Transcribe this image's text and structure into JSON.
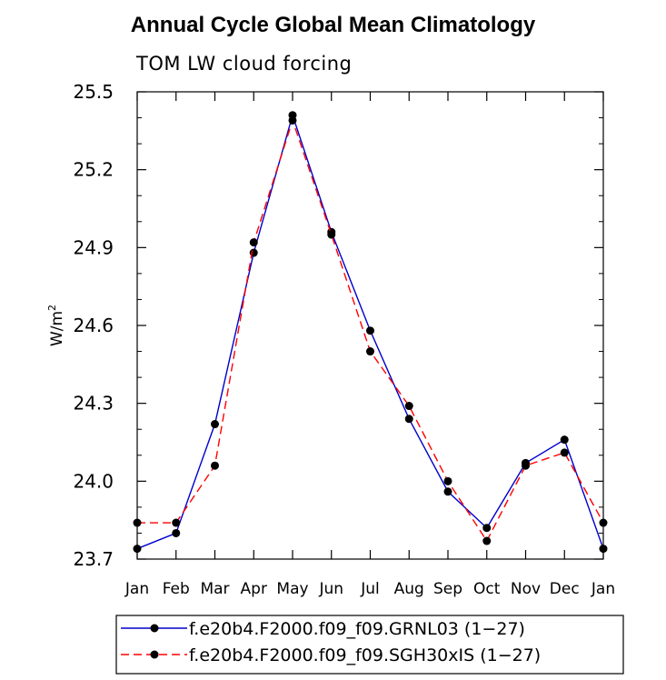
{
  "chart_data": {
    "type": "line",
    "title": "Annual Cycle Global Mean Climatology",
    "subtitle": "TOM LW cloud forcing",
    "xlabel": "",
    "ylabel_base": "W/m",
    "ylabel_sup": "2",
    "categories": [
      "Jan",
      "Feb",
      "Mar",
      "Apr",
      "May",
      "Jun",
      "Jul",
      "Aug",
      "Sep",
      "Oct",
      "Nov",
      "Dec",
      "Jan"
    ],
    "ylim": [
      23.7,
      25.5
    ],
    "yticks": [
      "23.7",
      "24.0",
      "24.3",
      "24.6",
      "24.9",
      "25.2",
      "25.5"
    ],
    "series": [
      {
        "name": "f.e20b4.F2000.f09_f09.GRNL03 (1−27)",
        "color": "#0000cc",
        "dash": "solid",
        "values": [
          23.74,
          23.8,
          24.22,
          24.88,
          25.41,
          24.96,
          24.58,
          24.24,
          23.96,
          23.82,
          24.07,
          24.16,
          23.74
        ]
      },
      {
        "name": "f.e20b4.F2000.f09_f09.SGH30xIS (1−27)",
        "color": "#ff0000",
        "dash": "dashed",
        "values": [
          23.84,
          23.84,
          24.06,
          24.92,
          25.39,
          24.95,
          24.5,
          24.29,
          24.0,
          23.77,
          24.06,
          24.11,
          23.84
        ]
      }
    ]
  }
}
